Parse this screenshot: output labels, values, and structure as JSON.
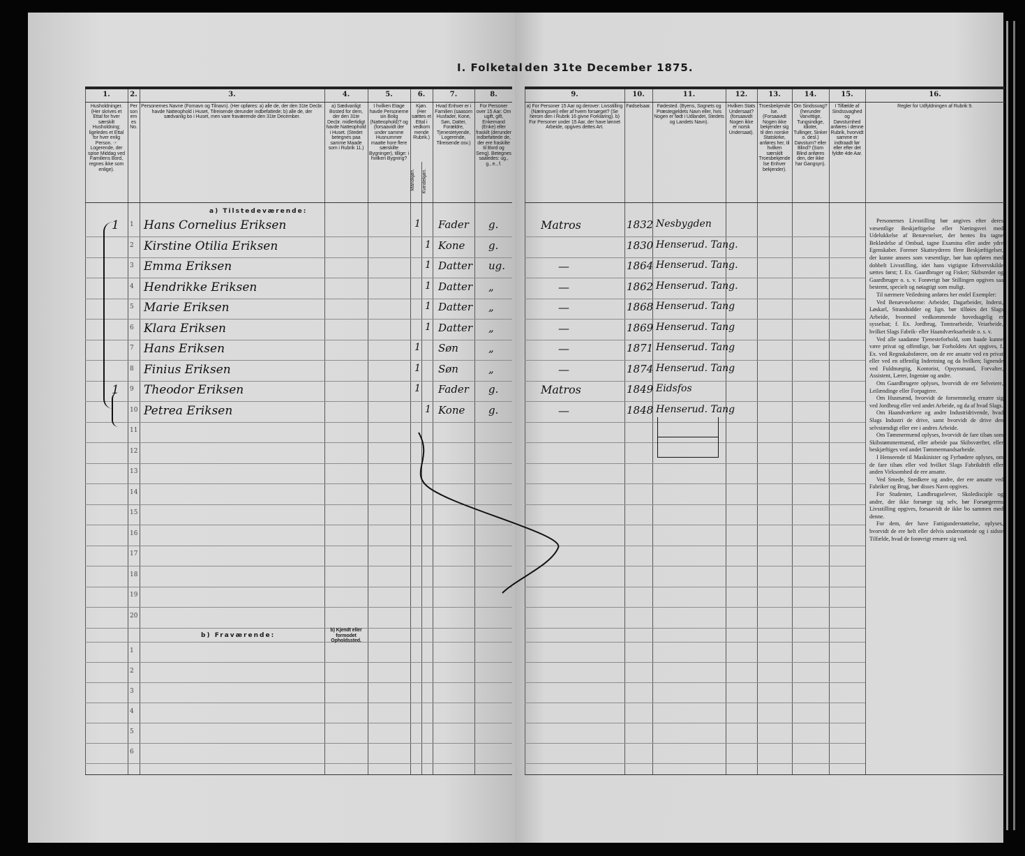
{
  "title_left": "I. Folketal",
  "title_right": "den 31te December 1875.",
  "columns": [
    {
      "num": "1.",
      "text": "Husholdninger. (Her skrives et Ettal for hver særskilt Husholdning; ligeledes et Ettal for hver enlig Person. ☞ Logerende, der spise Middag ved Familiens Bord, regnes ikke som enlige)."
    },
    {
      "num": "2.",
      "text": "Personernes No."
    },
    {
      "num": "3.",
      "text": "Personernes Navne (Fornavn og Tilnavn). (Her opføres: a) alle de, der den 31te Decbr. havde Natteophold i Huset, Tilreisende derunder indbefattede; b) alle de, der sædvanlig bo i Huset, men vare fraværende den 31te December."
    },
    {
      "num": "4.",
      "text": "a) Sædvanligt Bosted for dem, der den 31te Decbr. midlertidigt havde Natteophold i Huset. (Stedet betegnes paa samme Maade som i Rubrik 11.)"
    },
    {
      "num": "5.",
      "text": "I hvilken Etage havde Personerne sin Bolig (Natteophold)? og (forsaavidt der under samme Husnummer maatte hore flere særskilte Bygninger), tillige: i hvilken Bygning?"
    },
    {
      "num": "6.",
      "text": "Kjøn. (Her sættes et Ettal i vedkommende Rubrik.)",
      "sub": [
        "Mandkjøn.",
        "Kvindekjøn."
      ]
    },
    {
      "num": "7.",
      "text": "Hvad Enhver er i Familien (saasom Husfader, Kone, Søn, Datter, Forældre, Tjenestetyende, Logerende, Tilreisende osv.)"
    },
    {
      "num": "8.",
      "text": "For Personer over 15 Aar: Om ugift, gift, Enkemand (Enke) eller fraskilt (derunder indbefattede de, der ere fraskilte til Bord og Seng). Betegnes saaledes: ug., g., e., f."
    },
    {
      "num": "9.",
      "text": "a) For Personer 15 Aar og derover: Livsstilling (Næringsvei) eller af hvem forsørget? (Se herom den i Rubrik 16 givne Forklaring). b) For Personer under 15 Aar, der have lønnet Arbeide, opgives dettes Art."
    },
    {
      "num": "10.",
      "text": "Fødselsaar."
    },
    {
      "num": "11.",
      "text": "Fødested. (Byens, Sognets og Præstegjeldets Navn eller, hvis Nogen er født i Udlandet, Stedets og Landets Navn)."
    },
    {
      "num": "12.",
      "text": "Hvilken Stats Undersaat? (forsaavidt Nogen ikke er norsk Undersaat)."
    },
    {
      "num": "13.",
      "text": "Troesbekjendelse. (Forsaavidt Nogen ikke bekjender sig til den norske Statskirke, anføres her, til hvilken særskilt Troesbekjendelse Enhver bekjender)."
    },
    {
      "num": "14.",
      "text": "Om Sindssvag? (herunder Vanvittige, Tungsindige, Idioter, Tullinger, Sinker o. desl.) Døvstum? eller Blind? (Som Blind anføres den, der ikke har Gangsyn)."
    },
    {
      "num": "15.",
      "text": "I Tilfælde af Sindssvaghed og Døvstumhed anføres i denne Rubrik, hvorvidt samme er indtraadt før eller efter det fyldte 4de Aar."
    },
    {
      "num": "16.",
      "text": "Regler for Udfyldningen af Rubrik 9."
    }
  ],
  "section_present": "a) Tilstedeværende:",
  "section_absent": "b) Fraværende:",
  "absent_col4": "b) Kjendt eller formodet Opholdssted.",
  "rows": [
    {
      "no": "1",
      "hh": "1",
      "name": "Hans Cornelius Eriksen",
      "sex": "m",
      "rel": "Fader",
      "civ": "g.",
      "occ": "Matros",
      "year": "1832",
      "place": "Nesbygden"
    },
    {
      "no": "2",
      "hh": "",
      "name": "Kirstine Otilia Eriksen",
      "sex": "f",
      "rel": "Kone",
      "civ": "g.",
      "occ": "",
      "year": "1830",
      "place": "Henserud. Tang."
    },
    {
      "no": "3",
      "hh": "",
      "name": "Emma Eriksen",
      "sex": "f",
      "rel": "Datter",
      "civ": "ug.",
      "occ": "—",
      "year": "1864",
      "place": "Henserud. Tang."
    },
    {
      "no": "4",
      "hh": "",
      "name": "Hendrikke Eriksen",
      "sex": "f",
      "rel": "Datter",
      "civ": "„",
      "occ": "—",
      "year": "1862",
      "place": "Henserud. Tang."
    },
    {
      "no": "5",
      "hh": "",
      "name": "Marie Eriksen",
      "sex": "f",
      "rel": "Datter",
      "civ": "„",
      "occ": "—",
      "year": "1868",
      "place": "Henserud. Tang"
    },
    {
      "no": "6",
      "hh": "",
      "name": "Klara Eriksen",
      "sex": "f",
      "rel": "Datter",
      "civ": "„",
      "occ": "—",
      "year": "1869",
      "place": "Henserud. Tang"
    },
    {
      "no": "7",
      "hh": "",
      "name": "Hans Eriksen",
      "sex": "m",
      "rel": "Søn",
      "civ": "„",
      "occ": "—",
      "year": "1871",
      "place": "Henserud. Tang"
    },
    {
      "no": "8",
      "hh": "",
      "name": "Finius Eriksen",
      "sex": "m",
      "rel": "Søn",
      "civ": "„",
      "occ": "—",
      "year": "1874",
      "place": "Henserud. Tang"
    },
    {
      "no": "9",
      "hh": "1",
      "name": "Theodor Eriksen",
      "sex": "m",
      "rel": "Fader",
      "civ": "g.",
      "occ": "Matros",
      "year": "1849",
      "place": "Eidsfos"
    },
    {
      "no": "10",
      "hh": "",
      "name": "Petrea Eriksen",
      "sex": "f",
      "rel": "Kone",
      "civ": "g.",
      "occ": "—",
      "year": "1848",
      "place": "Henserud. Tang"
    }
  ],
  "empty_row_numbers": [
    "11",
    "12",
    "13",
    "14",
    "15",
    "16",
    "17",
    "18",
    "19",
    "20"
  ],
  "absent_row_numbers": [
    "1",
    "2",
    "3",
    "4",
    "5",
    "6"
  ],
  "rules_text": [
    "Personernes Livsstilling bør angives efter deres væsentlige Beskjæftigelse eller Næringsvei med Udelukkelse af Benævnelser, der hentes fra tagne Beklædelse af Ombud, tagne Examina eller andre ydre Egenskaber. Forener Skatteyderen flere Beskjæftigelser, der kunne ansees som væsentlige, bør han opføres med dobbelt Livsstilling, idet hans vigtigste Erhvervskilde sættes først; f. Ex. Gaardbruger og Fisker; Skibsreder og Gaardbruger o. s. v. Forøvrigt bør Stillingen opgives saa bestemt, specielt og nøiagtigt som muligt.",
    "Til nærmere Veiledning anføres her endel Exempler:",
    "Ved Benævnelserne: Arbeider, Dagarbeider, Inderst, Løskarl, Strandsidder og lign. bør tilføies det Slags Arbeide, hvormed vedkommende hovedsagelig er sysselsat; f. Ex. Jordbrug, Tomtearbeide, Veiarbeide, hvilket Slags Fabrik- eller Haandværksarbeide o. s. v.",
    "Ved alle saadanne Tjenesteforhold, som baade kunne være privat og offentlige, bør Forholdets Art opgives, f. Ex. ved Regnskabsførere, om de ere ansatte ved en privat eller ved en offentlig Indretning og da hvilken; lignende ved Fuldmægtig, Kontorist, Opsynsmand, Forvalter, Assistent, Lærer, Ingeniør og andre.",
    "Om Gaardbrugere oplyses, hvorvidt de ere Selveiere, Leilændinge eller Forpagtere.",
    "Om Husmænd, hvorvidt de fornemmelig ernære sig ved Jordbrug eller ved andet Arbeide, og da af hvad Slags.",
    "Om Haandværkere og andre Industridrivende, hvad Slags Industri de drive, samt hvorvidt de drive den selvstændigt eller ere i andres Arbeide.",
    "Om Tømmermænd oplyses, hvorvidt de fare tilsøs som Skibstømmermænd, eller arbeide paa Skibsværfter, eller beskjæftiges ved andet Tømmermandsarbeide.",
    "I Henseende til Maskinister og Fyrbødere oplyses, om de fare tilsøs eller ved hvilket Slags Fabrikdrift eller anden Virksomhed de ere ansatte.",
    "Ved Smede, Snedkere og andre, der ere ansatte ved Fabriker og Brug, bør disses Navn opgives.",
    "For Studenter, Landbrugselever, Skoledisciple og andre, der ikke forsørge sig selv, bør Forsørgerens Livsstilling opgives, forsaavidt de ikke bo sammen med denne.",
    "For dem, der have Fattigunderstøttelse, oplyses, hvorvidt de ere helt eller delvis understøttede og i sidste Tilfælde, hvad de forøvrigt ernære sig ved."
  ]
}
